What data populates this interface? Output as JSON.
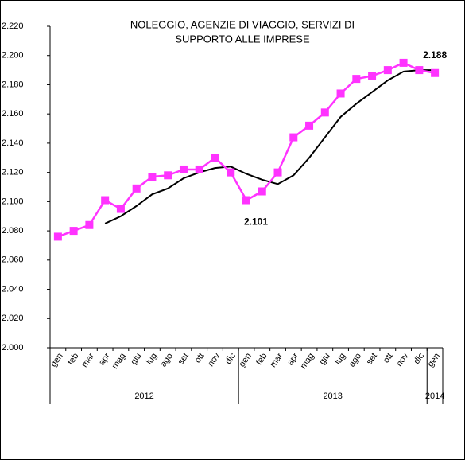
{
  "chart_data": {
    "type": "line",
    "title": [
      "NOLEGGIO, AGENZIE DI VIAGGIO, SERVIZI DI",
      "SUPPORTO ALLE IMPRESE"
    ],
    "categories": [
      "gen",
      "feb",
      "mar",
      "apr",
      "mag",
      "giu",
      "lug",
      "ago",
      "set",
      "ott",
      "nov",
      "dic",
      "gen",
      "feb",
      "mar",
      "apr",
      "mag",
      "giu",
      "lug",
      "ago",
      "set",
      "ott",
      "nov",
      "dic",
      "gen"
    ],
    "years": [
      "2012",
      "2013",
      "2014"
    ],
    "series": [
      {
        "color": "#ff33ff",
        "marker": "square",
        "values": [
          2.076,
          2.08,
          2.084,
          2.101,
          2.095,
          2.109,
          2.117,
          2.118,
          2.122,
          2.122,
          2.13,
          2.12,
          2.101,
          2.107,
          2.12,
          2.144,
          2.152,
          2.161,
          2.174,
          2.184,
          2.186,
          2.19,
          2.195,
          2.19,
          2.188
        ],
        "value_labels": [
          null,
          null,
          null,
          null,
          null,
          null,
          null,
          null,
          null,
          null,
          null,
          null,
          "2.101",
          null,
          null,
          null,
          null,
          null,
          null,
          null,
          null,
          null,
          null,
          null,
          "2.188"
        ]
      },
      {
        "color": "#000000",
        "values": [
          null,
          null,
          null,
          2.085,
          2.09,
          2.097,
          2.105,
          2.109,
          2.116,
          2.12,
          2.123,
          2.124,
          2.119,
          2.115,
          2.112,
          2.118,
          2.13,
          2.144,
          2.158,
          2.167,
          2.175,
          2.183,
          2.189,
          2.19,
          2.19
        ]
      }
    ],
    "ylim": [
      2.0,
      2.22
    ],
    "yticks": [
      {
        "value": 2.0,
        "label": "2.000"
      },
      {
        "value": 2.02,
        "label": "2.020"
      },
      {
        "value": 2.04,
        "label": "2.040"
      },
      {
        "value": 2.06,
        "label": "2.060"
      },
      {
        "value": 2.08,
        "label": "2.080"
      },
      {
        "value": 2.1,
        "label": "2.100"
      },
      {
        "value": 2.12,
        "label": "2.120"
      },
      {
        "value": 2.14,
        "label": "2.140"
      },
      {
        "value": 2.16,
        "label": "2.160"
      },
      {
        "value": 2.18,
        "label": "2.180"
      },
      {
        "value": 2.2,
        "label": "2.200"
      },
      {
        "value": 2.22,
        "label": "2.220"
      }
    ],
    "grid": false
  }
}
